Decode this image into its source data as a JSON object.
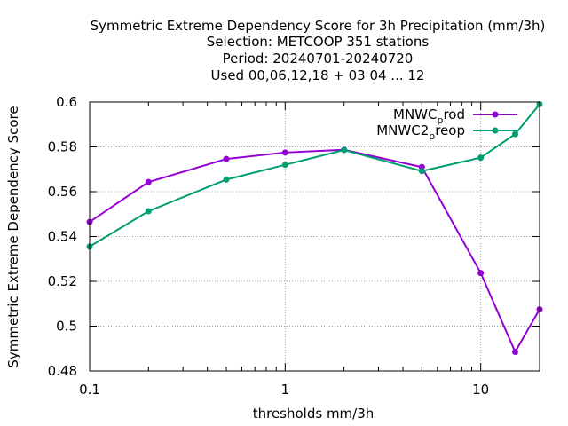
{
  "chart_data": {
    "type": "line",
    "title_lines": [
      "Symmetric Extreme Dependency Score  for 3h Precipitation (mm/3h)",
      "Selection: METCOOP    351 stations",
      "Period: 20240701-20240720",
      "Used  00,06,12,18 + 03 04 ... 12"
    ],
    "xlabel": "thresholds mm/3h",
    "ylabel": "Symmetric Extreme Dependency Score",
    "x_scale": "log",
    "xlim": [
      0.1,
      20
    ],
    "ylim": [
      0.48,
      0.6
    ],
    "x_ticks": [
      {
        "value": 0.1,
        "label": "0.1"
      },
      {
        "value": 1,
        "label": "1"
      },
      {
        "value": 10,
        "label": "10"
      }
    ],
    "y_ticks": [
      {
        "value": 0.48,
        "label": "0.48"
      },
      {
        "value": 0.5,
        "label": "0.5"
      },
      {
        "value": 0.52,
        "label": "0.52"
      },
      {
        "value": 0.54,
        "label": "0.54"
      },
      {
        "value": 0.56,
        "label": "0.56"
      },
      {
        "value": 0.58,
        "label": "0.58"
      },
      {
        "value": 0.6,
        "label": "0.6"
      }
    ],
    "grid": true,
    "legend_position": "top-right",
    "series": [
      {
        "name": "MNWC_prod",
        "legend_main": "MNWC",
        "legend_sub": "p",
        "legend_rest": "rod",
        "color": "#9400d3",
        "x": [
          0.1,
          0.2,
          0.5,
          1,
          2,
          5,
          10,
          15,
          20
        ],
        "y": [
          0.5465,
          0.5643,
          0.5746,
          0.5775,
          0.5787,
          0.571,
          0.5237,
          0.4885,
          0.5075
        ]
      },
      {
        "name": "MNWC2_preop",
        "legend_main": "MNWC2",
        "legend_sub": "p",
        "legend_rest": "reop",
        "color": "#009e73",
        "x": [
          0.1,
          0.2,
          0.5,
          1,
          2,
          5,
          10,
          15,
          20
        ],
        "y": [
          0.5355,
          0.5513,
          0.5654,
          0.572,
          0.5786,
          0.5692,
          0.5752,
          0.5857,
          0.599
        ]
      }
    ]
  }
}
